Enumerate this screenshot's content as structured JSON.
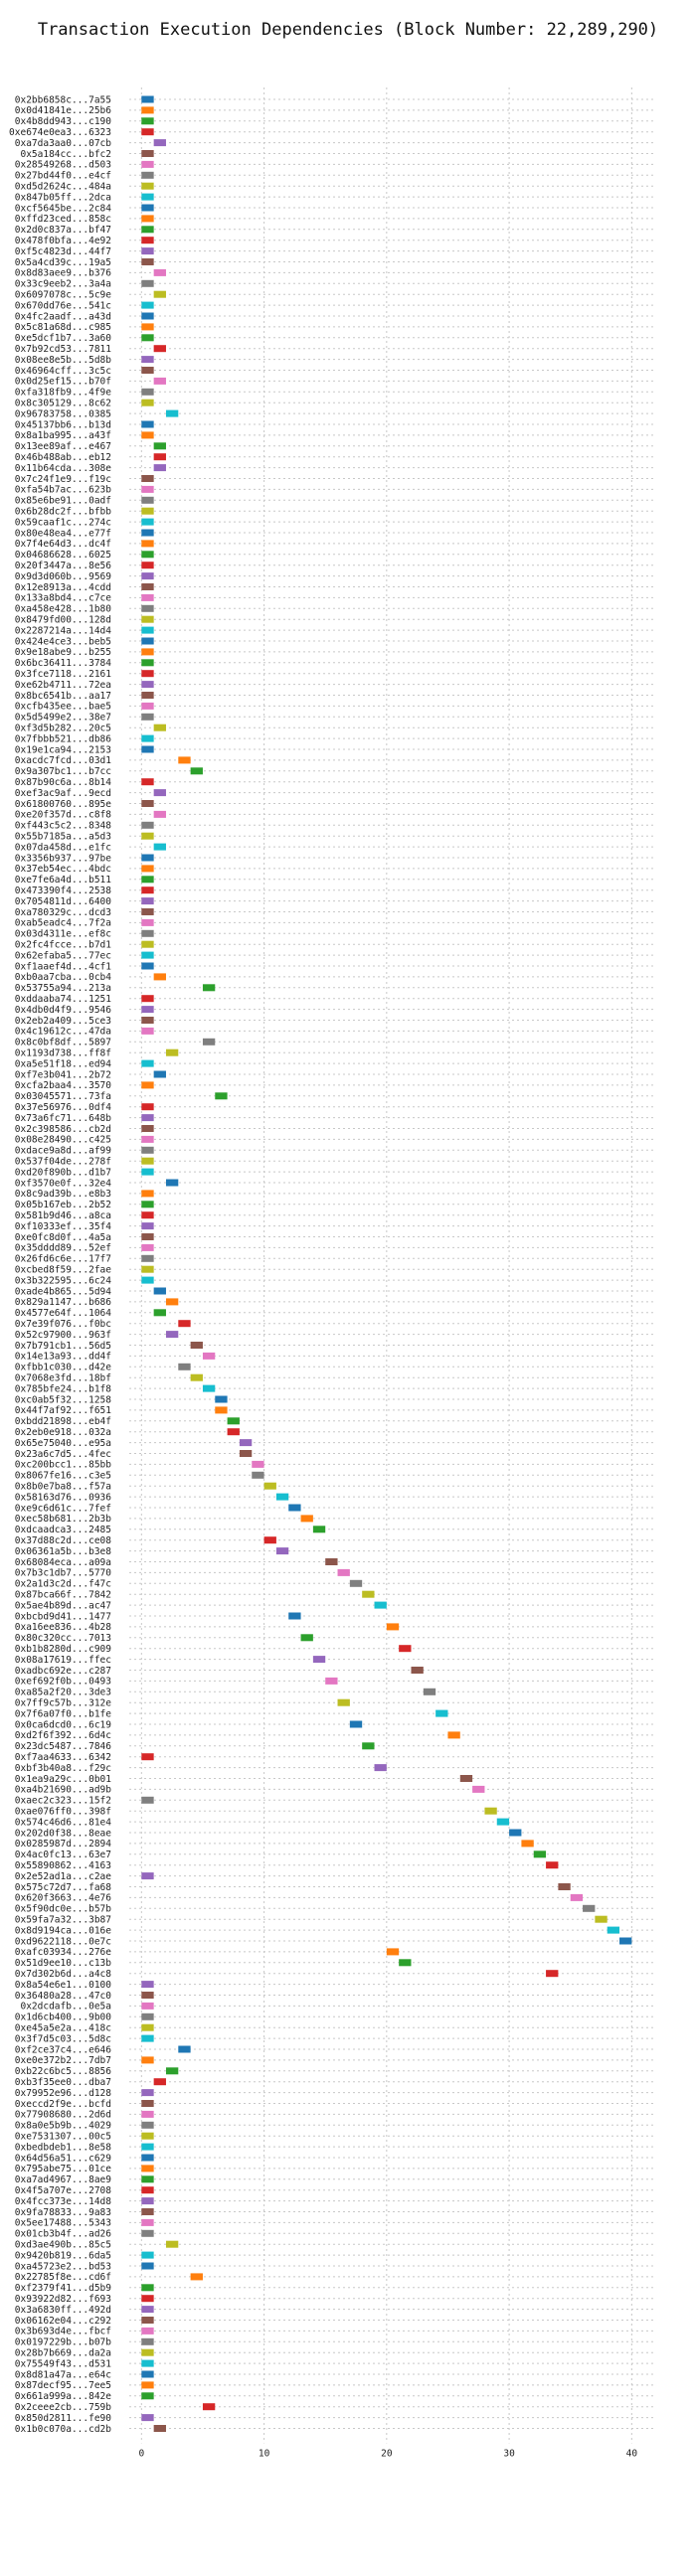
{
  "chart_data": {
    "type": "bar",
    "title": "Transaction Execution Dependencies (Block Number: 22,289,290)",
    "xlabel": "",
    "ylabel": "",
    "xlim": [
      -1,
      42
    ],
    "x_ticks": [
      0,
      10,
      20,
      30,
      40
    ],
    "grid": "dashed x and y",
    "orientation": "horizontal (gantt)",
    "palette": [
      "#1f77b4",
      "#ff7f0e",
      "#2ca02c",
      "#d62728",
      "#9467bd",
      "#8c564b",
      "#e377c2",
      "#7f7f7f",
      "#bcbd22",
      "#17becf"
    ],
    "transactions": [
      {
        "label": "0x2bb6858c...7a55",
        "start": 0
      },
      {
        "label": "0x0d41841e...25b6",
        "start": 0
      },
      {
        "label": "0x4b8dd943...c190",
        "start": 0
      },
      {
        "label": "0xe674e0ea3...6323",
        "start": 0
      },
      {
        "label": "0xa7da3aa0...07cb",
        "start": 1
      },
      {
        "label": "0x5a184cc...bfc2",
        "start": 0
      },
      {
        "label": "0x28549268...d503",
        "start": 0
      },
      {
        "label": "0x27bd44f0...e4cf",
        "start": 0
      },
      {
        "label": "0xd5d2624c...484a",
        "start": 0
      },
      {
        "label": "0x847b05ff...2dca",
        "start": 0
      },
      {
        "label": "0xcf5645be...2c84",
        "start": 0
      },
      {
        "label": "0xffd23ced...858c",
        "start": 0
      },
      {
        "label": "0x2d0c837a...bf47",
        "start": 0
      },
      {
        "label": "0x478f0bfa...4e92",
        "start": 0
      },
      {
        "label": "0xf5c4823d...44f7",
        "start": 0
      },
      {
        "label": "0x5a4cd39c...19a5",
        "start": 0
      },
      {
        "label": "0x8d83aee9...b376",
        "start": 1
      },
      {
        "label": "0x33c9eeb2...3a4a",
        "start": 0
      },
      {
        "label": "0x6097078c...5c9e",
        "start": 1
      },
      {
        "label": "0x670dd76e...541c",
        "start": 0
      },
      {
        "label": "0x4fc2aadf...a43d",
        "start": 0
      },
      {
        "label": "0x5c81a68d...c985",
        "start": 0
      },
      {
        "label": "0xe5dcf1b7...3a60",
        "start": 0
      },
      {
        "label": "0x7b92cd53...7811",
        "start": 1
      },
      {
        "label": "0x08ee8e5b...5d8b",
        "start": 0
      },
      {
        "label": "0x46964cff...3c5c",
        "start": 0
      },
      {
        "label": "0x0d25ef15...b70f",
        "start": 1
      },
      {
        "label": "0xfa318fb9...4f9e",
        "start": 0
      },
      {
        "label": "0x8c305129...8c62",
        "start": 0
      },
      {
        "label": "0x96783758...0385",
        "start": 2
      },
      {
        "label": "0x45137bb6...b13d",
        "start": 0
      },
      {
        "label": "0x8a1ba995...a43f",
        "start": 0
      },
      {
        "label": "0x13ee89af...e467",
        "start": 1
      },
      {
        "label": "0x46b488ab...eb12",
        "start": 1
      },
      {
        "label": "0x11b64cda...308e",
        "start": 1
      },
      {
        "label": "0x7c24f1e9...f19c",
        "start": 0
      },
      {
        "label": "0xfa54b7ac...623b",
        "start": 0
      },
      {
        "label": "0x85e6be91...0adf",
        "start": 0
      },
      {
        "label": "0x6b28dc2f...bfbb",
        "start": 0
      },
      {
        "label": "0x59caaf1c...274c",
        "start": 0
      },
      {
        "label": "0x80e48ea4...e77f",
        "start": 0
      },
      {
        "label": "0x7f4e64d3...dc4f",
        "start": 0
      },
      {
        "label": "0x04686628...6025",
        "start": 0
      },
      {
        "label": "0x20f3447a...8e56",
        "start": 0
      },
      {
        "label": "0x9d3d060b...9569",
        "start": 0
      },
      {
        "label": "0x12e8913a...4cdd",
        "start": 0
      },
      {
        "label": "0x133a8bd4...c7ce",
        "start": 0
      },
      {
        "label": "0xa458e428...1b80",
        "start": 0
      },
      {
        "label": "0x8479fd00...128d",
        "start": 0
      },
      {
        "label": "0x2287214a...14d4",
        "start": 0
      },
      {
        "label": "0x424e4ce3...beb5",
        "start": 0
      },
      {
        "label": "0x9e18abe9...b255",
        "start": 0
      },
      {
        "label": "0x6bc36411...3784",
        "start": 0
      },
      {
        "label": "0x3fce7118...2161",
        "start": 0
      },
      {
        "label": "0xe62b4711...72ea",
        "start": 0
      },
      {
        "label": "0x8bc6541b...aa17",
        "start": 0
      },
      {
        "label": "0xcfb435ee...bae5",
        "start": 0
      },
      {
        "label": "0x5d5499e2...38e7",
        "start": 0
      },
      {
        "label": "0xf3d5b282...20c5",
        "start": 1
      },
      {
        "label": "0x7fbbb521...db86",
        "start": 0
      },
      {
        "label": "0x19e1ca94...2153",
        "start": 0
      },
      {
        "label": "0xacdc7fcd...03d1",
        "start": 3
      },
      {
        "label": "0x9a307bc1...b7cc",
        "start": 4
      },
      {
        "label": "0x87b90c6a...8b14",
        "start": 0
      },
      {
        "label": "0xef3ac9af...9ecd",
        "start": 1
      },
      {
        "label": "0x61800760...895e",
        "start": 0
      },
      {
        "label": "0xe20f357d...c8f8",
        "start": 1
      },
      {
        "label": "0xf443c5c2...8348",
        "start": 0
      },
      {
        "label": "0x55b7185a...a5d3",
        "start": 0
      },
      {
        "label": "0x07da458d...e1fc",
        "start": 1
      },
      {
        "label": "0x3356b937...97be",
        "start": 0
      },
      {
        "label": "0x37eb54ec...4bdc",
        "start": 0
      },
      {
        "label": "0xe7fe6a4d...b511",
        "start": 0
      },
      {
        "label": "0x473390f4...2538",
        "start": 0
      },
      {
        "label": "0x7054811d...6400",
        "start": 0
      },
      {
        "label": "0xa780329c...dcd3",
        "start": 0
      },
      {
        "label": "0xab5eadc4...7f2a",
        "start": 0
      },
      {
        "label": "0x03d4311e...ef8c",
        "start": 0
      },
      {
        "label": "0x2fc4fcce...b7d1",
        "start": 0
      },
      {
        "label": "0x62efaba5...77ec",
        "start": 0
      },
      {
        "label": "0xf1aaef4d...4cf1",
        "start": 0
      },
      {
        "label": "0xb0aa7cba...0cb4",
        "start": 1
      },
      {
        "label": "0x53755a94...213a",
        "start": 5
      },
      {
        "label": "0xddaaba74...1251",
        "start": 0
      },
      {
        "label": "0x4db0d4f9...9546",
        "start": 0
      },
      {
        "label": "0x2eb2a409...5ce3",
        "start": 0
      },
      {
        "label": "0x4c19612c...47da",
        "start": 0
      },
      {
        "label": "0x8c0bf8df...5897",
        "start": 5
      },
      {
        "label": "0x1193d738...ff8f",
        "start": 2
      },
      {
        "label": "0xa5e51f18...ed94",
        "start": 0
      },
      {
        "label": "0xf7e3b041...2b72",
        "start": 1
      },
      {
        "label": "0xcfa2baa4...3570",
        "start": 0
      },
      {
        "label": "0x03045571...73fa",
        "start": 6
      },
      {
        "label": "0x37e56976...0df4",
        "start": 0
      },
      {
        "label": "0x73a6fc71...648b",
        "start": 0
      },
      {
        "label": "0x2c398586...cb2d",
        "start": 0
      },
      {
        "label": "0x08e28490...c425",
        "start": 0
      },
      {
        "label": "0xdace9a8d...af99",
        "start": 0
      },
      {
        "label": "0x537f04de...278f",
        "start": 0
      },
      {
        "label": "0xd20f890b...d1b7",
        "start": 0
      },
      {
        "label": "0xf3570e0f...32e4",
        "start": 2
      },
      {
        "label": "0x8c9ad39b...e8b3",
        "start": 0
      },
      {
        "label": "0x05b167eb...2b52",
        "start": 0
      },
      {
        "label": "0x581b9d46...a8ca",
        "start": 0
      },
      {
        "label": "0xf10333ef...35f4",
        "start": 0
      },
      {
        "label": "0xe0fc8d0f...4a5a",
        "start": 0
      },
      {
        "label": "0x35dddd89...52ef",
        "start": 0
      },
      {
        "label": "0x26fd6c6e...17f7",
        "start": 0
      },
      {
        "label": "0xcbed8f59...2fae",
        "start": 0
      },
      {
        "label": "0x3b322595...6c24",
        "start": 0
      },
      {
        "label": "0xade4b865...5d94",
        "start": 1
      },
      {
        "label": "0x829a1147...b686",
        "start": 2
      },
      {
        "label": "0x4577e64f...1064",
        "start": 1
      },
      {
        "label": "0x7e39f076...f0bc",
        "start": 3
      },
      {
        "label": "0x52c97900...963f",
        "start": 2
      },
      {
        "label": "0x7b791cb1...56d5",
        "start": 4
      },
      {
        "label": "0x14e13a93...dd4f",
        "start": 5
      },
      {
        "label": "0xfbb1c030...d42e",
        "start": 3
      },
      {
        "label": "0x7068e3fd...18bf",
        "start": 4
      },
      {
        "label": "0x785bfe24...b1f8",
        "start": 5
      },
      {
        "label": "0xc0ab5f32...1258",
        "start": 6
      },
      {
        "label": "0x44f7af92...f651",
        "start": 6
      },
      {
        "label": "0xbdd21898...eb4f",
        "start": 7
      },
      {
        "label": "0x2eb0e918...032a",
        "start": 7
      },
      {
        "label": "0x65e75040...e95a",
        "start": 8
      },
      {
        "label": "0x23a6c7d5...4fec",
        "start": 8
      },
      {
        "label": "0xc200bcc1...85bb",
        "start": 9
      },
      {
        "label": "0x8067fe16...c3e5",
        "start": 9
      },
      {
        "label": "0x8b0e7ba8...f57a",
        "start": 10
      },
      {
        "label": "0x58163d76...0936",
        "start": 11
      },
      {
        "label": "0xe9c6d61c...7fef",
        "start": 12
      },
      {
        "label": "0xec58b681...2b3b",
        "start": 13
      },
      {
        "label": "0xdcaadca3...2485",
        "start": 14
      },
      {
        "label": "0x37d88c2d...ce08",
        "start": 10
      },
      {
        "label": "0x06361a5b...b3e8",
        "start": 11
      },
      {
        "label": "0x68084eca...a09a",
        "start": 15
      },
      {
        "label": "0x7b3c1db7...5770",
        "start": 16
      },
      {
        "label": "0x2a1d3c2d...f47c",
        "start": 17
      },
      {
        "label": "0x87bca66f...7842",
        "start": 18
      },
      {
        "label": "0x5ae4b89d...ac47",
        "start": 19
      },
      {
        "label": "0xbcbd9d41...1477",
        "start": 12
      },
      {
        "label": "0xa16ee836...4b28",
        "start": 20
      },
      {
        "label": "0x80c320cc...7013",
        "start": 13
      },
      {
        "label": "0xb1b8280d...c909",
        "start": 21
      },
      {
        "label": "0x08a17619...ffec",
        "start": 14
      },
      {
        "label": "0xadbc692e...c287",
        "start": 22
      },
      {
        "label": "0xef692f0b...0493",
        "start": 15
      },
      {
        "label": "0xa85a2f20...3de3",
        "start": 23
      },
      {
        "label": "0x7ff9c57b...312e",
        "start": 16
      },
      {
        "label": "0x7f6a07f0...b1fe",
        "start": 24
      },
      {
        "label": "0x0ca6dcd0...6c19",
        "start": 17
      },
      {
        "label": "0xd2f6f392...6d4c",
        "start": 25
      },
      {
        "label": "0x23dc5487...7846",
        "start": 18
      },
      {
        "label": "0xf7aa4633...6342",
        "start": 0
      },
      {
        "label": "0xbf3b40a8...f29c",
        "start": 19
      },
      {
        "label": "0x1ea9a29c...0b01",
        "start": 26
      },
      {
        "label": "0xa4b21690...ad9b",
        "start": 27
      },
      {
        "label": "0xaec2c323...15f2",
        "start": 0
      },
      {
        "label": "0xae076ff0...398f",
        "start": 28
      },
      {
        "label": "0x574c46d6...81e4",
        "start": 29
      },
      {
        "label": "0x202d0f38...8eae",
        "start": 30
      },
      {
        "label": "0x0285987d...2894",
        "start": 31
      },
      {
        "label": "0x4ac0fc13...63e7",
        "start": 32
      },
      {
        "label": "0x55890862...4163",
        "start": 33
      },
      {
        "label": "0x2e52ad1a...c2ae",
        "start": 0
      },
      {
        "label": "0x575c72d7...fa68",
        "start": 34
      },
      {
        "label": "0x620f3663...4e76",
        "start": 35
      },
      {
        "label": "0x5f90dc0e...b57b",
        "start": 36
      },
      {
        "label": "0x59fa7a32...3b87",
        "start": 37
      },
      {
        "label": "0x8d9194ca...016e",
        "start": 38
      },
      {
        "label": "0xd9622118...0e7c",
        "start": 39
      },
      {
        "label": "0xafc03934...276e",
        "start": 20
      },
      {
        "label": "0x51d9ee10...c13b",
        "start": 21
      },
      {
        "label": "0x7d302b6d...a4c8",
        "start": 33
      },
      {
        "label": "0x8a54e6e1...0100",
        "start": 0
      },
      {
        "label": "0x36480a28...47c0",
        "start": 0
      },
      {
        "label": "0x2dcdafb...0e5a",
        "start": 0
      },
      {
        "label": "0x1d6cb400...9b00",
        "start": 0
      },
      {
        "label": "0xe45a5e2a...418c",
        "start": 0
      },
      {
        "label": "0x3f7d5c03...5d8c",
        "start": 0
      },
      {
        "label": "0xf2ce37c4...e646",
        "start": 3
      },
      {
        "label": "0xe0e372b2...7db7",
        "start": 0
      },
      {
        "label": "0xb22c6bc5...8856",
        "start": 2
      },
      {
        "label": "0xb3f35ee0...dba7",
        "start": 1
      },
      {
        "label": "0x79952e96...d128",
        "start": 0
      },
      {
        "label": "0xeccd2f9e...bcfd",
        "start": 0
      },
      {
        "label": "0x77908680...2d6d",
        "start": 0
      },
      {
        "label": "0x8a0e5b9b...4029",
        "start": 0
      },
      {
        "label": "0xe7531307...00c5",
        "start": 0
      },
      {
        "label": "0xbedbdeb1...8e58",
        "start": 0
      },
      {
        "label": "0x64d56a51...c629",
        "start": 0
      },
      {
        "label": "0x795abe75...01ce",
        "start": 0
      },
      {
        "label": "0xa7ad4967...8ae9",
        "start": 0
      },
      {
        "label": "0x4f5a707e...2708",
        "start": 0
      },
      {
        "label": "0x4fcc373e...14d8",
        "start": 0
      },
      {
        "label": "0x9fa78833...9a83",
        "start": 0
      },
      {
        "label": "0x5ee17488...5343",
        "start": 0
      },
      {
        "label": "0x01cb3b4f...ad26",
        "start": 0
      },
      {
        "label": "0xd3ae490b...85c5",
        "start": 2
      },
      {
        "label": "0x9420b819...6da5",
        "start": 0
      },
      {
        "label": "0xa45723e2...bd53",
        "start": 0
      },
      {
        "label": "0x22785f8e...cd6f",
        "start": 4
      },
      {
        "label": "0xf2379f41...d5b9",
        "start": 0
      },
      {
        "label": "0x93922d82...f693",
        "start": 0
      },
      {
        "label": "0x3a6830ff...492d",
        "start": 0
      },
      {
        "label": "0x06162e04...c292",
        "start": 0
      },
      {
        "label": "0x3b693d4e...fbcf",
        "start": 0
      },
      {
        "label": "0x0197229b...b07b",
        "start": 0
      },
      {
        "label": "0x28b7b669...da2a",
        "start": 0
      },
      {
        "label": "0x75549f43...d531",
        "start": 0
      },
      {
        "label": "0x8d81a47a...e64c",
        "start": 0
      },
      {
        "label": "0x87decf95...7ee5",
        "start": 0
      },
      {
        "label": "0x661a999a...842e",
        "start": 0
      },
      {
        "label": "0x2ceee2cb...759b",
        "start": 5
      },
      {
        "label": "0x850d2811...fe90",
        "start": 0
      },
      {
        "label": "0x1b0c070a...cd2b",
        "start": 1
      }
    ]
  }
}
